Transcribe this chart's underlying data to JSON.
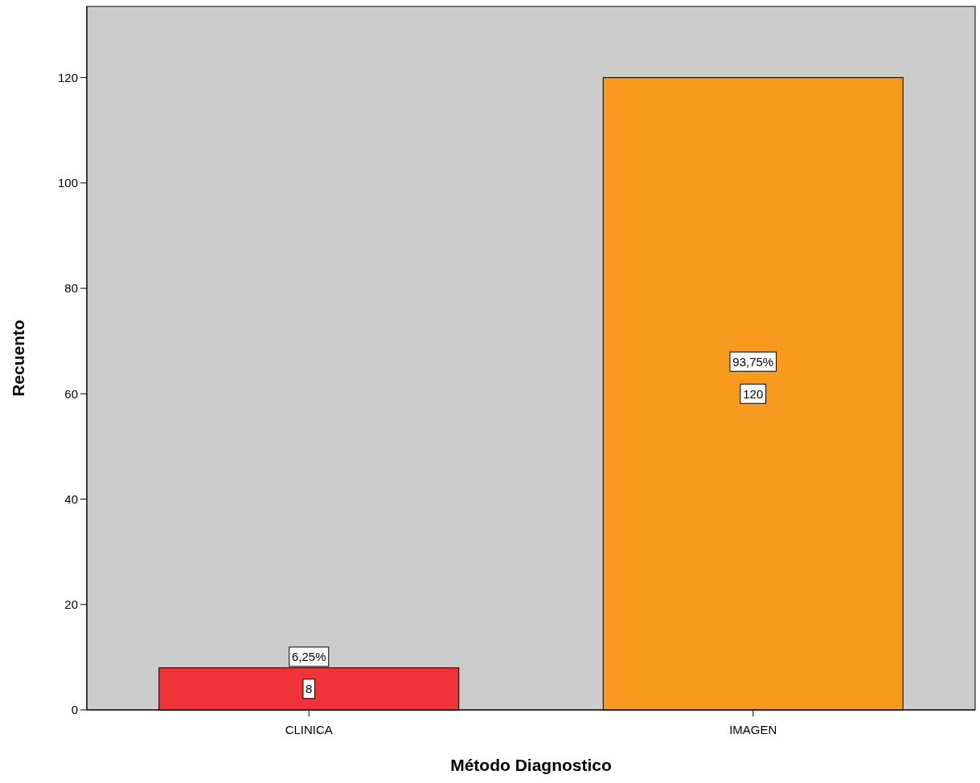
{
  "chart_data": {
    "type": "bar",
    "xlabel": "Método Diagnostico",
    "ylabel": "Recuento",
    "categories": [
      "CLINICA",
      "IMAGEN"
    ],
    "values": [
      8,
      120
    ],
    "colors": [
      "#ef3338",
      "#f89a1e"
    ],
    "ylim": [
      0,
      133.5
    ],
    "yticks": [
      0,
      20,
      40,
      60,
      80,
      100,
      120
    ],
    "grid": false,
    "data_labels": true,
    "annotations": [
      "6,25%",
      "93,75%"
    ]
  }
}
